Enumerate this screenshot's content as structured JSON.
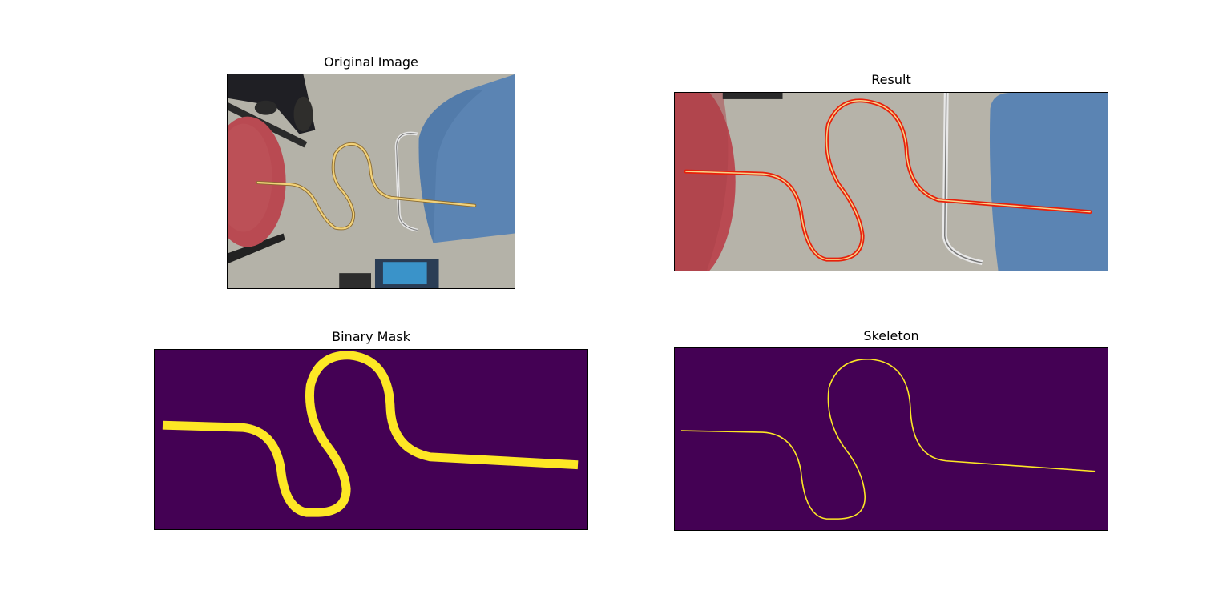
{
  "figure": {
    "panels": [
      {
        "id": "original",
        "title": "Original Image"
      },
      {
        "id": "result",
        "title": "Result"
      },
      {
        "id": "mask",
        "title": "Binary Mask"
      },
      {
        "id": "skeleton",
        "title": "Skeleton"
      }
    ]
  },
  "colors": {
    "mask_background": "#440154",
    "mask_foreground": "#fde725",
    "overlay_line": "#e8200a",
    "rope": "#f2d27a",
    "floor": "#b7b4a9",
    "red_chair": "#b94a52",
    "blue_chair": "#5b84b3"
  }
}
